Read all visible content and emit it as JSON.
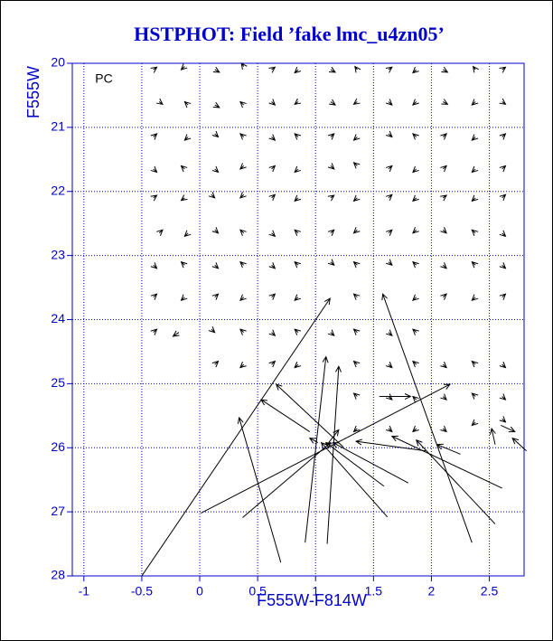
{
  "chart_data": {
    "type": "vector",
    "title": "HSTPHOT: Field ’fake lmc_u4zn05’",
    "x_label": "F555W-F814W",
    "y_label": "F555W",
    "annotation": "PC",
    "xlim": [
      -1.1,
      2.8
    ],
    "ylim": [
      28,
      20
    ],
    "y_inverted": true,
    "xticks": [
      -1,
      -0.5,
      0,
      0.5,
      1,
      1.5,
      2,
      2.5
    ],
    "yticks": [
      20,
      21,
      22,
      23,
      24,
      25,
      26,
      27,
      28
    ],
    "grid": true,
    "color": "#000000",
    "vectors": [
      [
        -0.4,
        20.1,
        -0.37,
        20.06
      ],
      [
        -0.13,
        20.05,
        -0.16,
        20.1
      ],
      [
        0.13,
        20.1,
        0.17,
        20.14
      ],
      [
        0.38,
        20.05,
        0.36,
        20.0
      ],
      [
        0.62,
        20.1,
        0.65,
        20.06
      ],
      [
        0.85,
        20.1,
        0.82,
        20.15
      ],
      [
        1.13,
        20.1,
        1.17,
        20.14
      ],
      [
        1.36,
        20.1,
        1.34,
        20.05
      ],
      [
        1.63,
        20.1,
        1.66,
        20.06
      ],
      [
        1.87,
        20.1,
        1.84,
        20.15
      ],
      [
        2.1,
        20.1,
        2.14,
        20.14
      ],
      [
        2.38,
        20.1,
        2.36,
        20.05
      ],
      [
        2.61,
        20.1,
        2.64,
        20.06
      ],
      [
        -0.35,
        20.6,
        -0.32,
        20.64
      ],
      [
        -0.1,
        20.65,
        -0.13,
        20.6
      ],
      [
        0.13,
        20.65,
        0.17,
        20.69
      ],
      [
        0.38,
        20.65,
        0.35,
        20.6
      ],
      [
        0.62,
        20.6,
        0.65,
        20.65
      ],
      [
        0.85,
        20.6,
        0.82,
        20.64
      ],
      [
        1.13,
        20.6,
        1.17,
        20.65
      ],
      [
        1.36,
        20.6,
        1.33,
        20.64
      ],
      [
        1.63,
        20.6,
        1.66,
        20.65
      ],
      [
        1.87,
        20.6,
        1.84,
        20.65
      ],
      [
        2.1,
        20.6,
        2.14,
        20.64
      ],
      [
        2.38,
        20.6,
        2.35,
        20.65
      ],
      [
        2.61,
        20.6,
        2.64,
        20.64
      ],
      [
        -0.4,
        21.15,
        -0.37,
        21.1
      ],
      [
        -0.1,
        21.15,
        -0.13,
        21.2
      ],
      [
        0.13,
        21.1,
        0.16,
        21.15
      ],
      [
        0.38,
        21.15,
        0.35,
        21.1
      ],
      [
        0.62,
        21.15,
        0.65,
        21.2
      ],
      [
        0.85,
        21.15,
        0.82,
        21.1
      ],
      [
        1.13,
        21.15,
        1.16,
        21.1
      ],
      [
        1.36,
        21.15,
        1.33,
        21.2
      ],
      [
        1.63,
        21.1,
        1.66,
        21.15
      ],
      [
        1.87,
        21.15,
        1.84,
        21.1
      ],
      [
        2.1,
        21.15,
        2.13,
        21.1
      ],
      [
        2.38,
        21.15,
        2.35,
        21.2
      ],
      [
        2.61,
        21.15,
        2.64,
        21.1
      ],
      [
        -0.4,
        21.65,
        -0.37,
        21.7
      ],
      [
        -0.13,
        21.65,
        -0.16,
        21.6
      ],
      [
        0.13,
        21.65,
        0.16,
        21.7
      ],
      [
        0.38,
        21.6,
        0.35,
        21.65
      ],
      [
        0.62,
        21.65,
        0.65,
        21.6
      ],
      [
        0.85,
        21.65,
        0.82,
        21.7
      ],
      [
        1.13,
        21.6,
        1.16,
        21.65
      ],
      [
        1.36,
        21.6,
        1.33,
        21.55
      ],
      [
        1.63,
        21.65,
        1.66,
        21.6
      ],
      [
        1.87,
        21.65,
        1.84,
        21.7
      ],
      [
        2.1,
        21.65,
        2.13,
        21.6
      ],
      [
        2.38,
        21.65,
        2.35,
        21.7
      ],
      [
        2.61,
        21.65,
        2.64,
        21.6
      ],
      [
        -0.4,
        22.1,
        -0.37,
        22.06
      ],
      [
        -0.13,
        22.1,
        -0.16,
        22.14
      ],
      [
        0.1,
        22.05,
        0.13,
        22.1
      ],
      [
        0.38,
        22.05,
        0.35,
        22.1
      ],
      [
        0.62,
        22.1,
        0.65,
        22.05
      ],
      [
        0.85,
        22.1,
        0.82,
        22.15
      ],
      [
        1.13,
        22.1,
        1.16,
        22.06
      ],
      [
        1.36,
        22.1,
        1.33,
        22.15
      ],
      [
        1.63,
        22.1,
        1.66,
        22.05
      ],
      [
        1.87,
        22.1,
        1.84,
        22.15
      ],
      [
        2.1,
        22.1,
        2.13,
        22.06
      ],
      [
        2.38,
        22.1,
        2.35,
        22.15
      ],
      [
        2.61,
        22.1,
        2.64,
        22.05
      ],
      [
        -0.35,
        22.65,
        -0.32,
        22.6
      ],
      [
        -0.1,
        22.65,
        -0.13,
        22.7
      ],
      [
        0.13,
        22.6,
        0.16,
        22.65
      ],
      [
        0.38,
        22.65,
        0.35,
        22.6
      ],
      [
        0.62,
        22.65,
        0.65,
        22.7
      ],
      [
        0.85,
        22.65,
        0.82,
        22.6
      ],
      [
        1.13,
        22.65,
        1.16,
        22.6
      ],
      [
        1.36,
        22.6,
        1.33,
        22.65
      ],
      [
        1.63,
        22.65,
        1.66,
        22.6
      ],
      [
        1.87,
        22.6,
        1.84,
        22.65
      ],
      [
        2.1,
        22.6,
        2.13,
        22.65
      ],
      [
        2.38,
        22.65,
        2.35,
        22.6
      ],
      [
        2.61,
        22.65,
        2.64,
        22.7
      ],
      [
        -0.4,
        23.15,
        -0.37,
        23.2
      ],
      [
        -0.13,
        23.15,
        -0.16,
        23.1
      ],
      [
        0.13,
        23.15,
        0.16,
        23.2
      ],
      [
        0.38,
        23.15,
        0.35,
        23.1
      ],
      [
        0.62,
        23.15,
        0.65,
        23.2
      ],
      [
        0.85,
        23.15,
        0.82,
        23.1
      ],
      [
        1.13,
        23.1,
        1.16,
        23.15
      ],
      [
        1.36,
        23.15,
        1.33,
        23.1
      ],
      [
        1.63,
        23.1,
        1.66,
        23.15
      ],
      [
        1.87,
        23.15,
        1.84,
        23.1
      ],
      [
        2.1,
        23.15,
        2.13,
        23.2
      ],
      [
        2.38,
        23.15,
        2.35,
        23.1
      ],
      [
        2.61,
        23.15,
        2.64,
        23.2
      ],
      [
        -0.4,
        23.65,
        -0.37,
        23.6
      ],
      [
        -0.13,
        23.65,
        -0.16,
        23.7
      ],
      [
        0.13,
        23.65,
        0.16,
        23.6
      ],
      [
        0.38,
        23.65,
        0.35,
        23.7
      ],
      [
        0.62,
        23.65,
        0.65,
        23.6
      ],
      [
        0.85,
        23.65,
        0.82,
        23.7
      ],
      [
        1.36,
        23.65,
        1.33,
        23.6
      ],
      [
        1.87,
        23.65,
        1.84,
        23.7
      ],
      [
        2.1,
        23.65,
        2.13,
        23.6
      ],
      [
        2.38,
        23.65,
        2.35,
        23.7
      ],
      [
        2.61,
        23.65,
        2.64,
        23.6
      ],
      [
        -0.4,
        24.2,
        -0.37,
        24.15
      ],
      [
        -0.18,
        24.2,
        -0.23,
        24.26
      ],
      [
        0.1,
        24.15,
        0.13,
        24.2
      ],
      [
        0.38,
        24.2,
        0.35,
        24.15
      ],
      [
        0.62,
        24.2,
        0.65,
        24.25
      ],
      [
        0.85,
        24.2,
        0.82,
        24.15
      ],
      [
        1.13,
        24.2,
        1.16,
        24.25
      ],
      [
        1.36,
        24.2,
        1.33,
        24.15
      ],
      [
        1.63,
        24.2,
        1.66,
        24.25
      ],
      [
        1.87,
        24.2,
        1.84,
        24.15
      ],
      [
        0.13,
        24.7,
        0.16,
        24.65
      ],
      [
        0.38,
        24.7,
        0.35,
        24.75
      ],
      [
        0.62,
        24.7,
        0.65,
        24.65
      ],
      [
        0.85,
        24.7,
        0.82,
        24.75
      ],
      [
        1.36,
        24.7,
        1.33,
        24.65
      ],
      [
        1.63,
        24.7,
        1.66,
        24.75
      ],
      [
        1.87,
        24.7,
        1.84,
        24.65
      ],
      [
        2.1,
        24.7,
        2.13,
        24.75
      ],
      [
        2.38,
        24.7,
        2.35,
        24.65
      ],
      [
        2.61,
        24.7,
        2.64,
        24.75
      ],
      [
        1.36,
        25.2,
        1.33,
        25.15
      ],
      [
        1.63,
        25.2,
        1.66,
        25.25
      ],
      [
        1.87,
        25.25,
        1.84,
        25.2
      ],
      [
        2.1,
        25.2,
        2.13,
        25.25
      ],
      [
        2.38,
        25.2,
        2.35,
        25.15
      ],
      [
        2.61,
        25.2,
        2.64,
        25.25
      ],
      [
        1.36,
        25.7,
        1.33,
        25.75
      ],
      [
        1.63,
        25.7,
        1.66,
        25.75
      ],
      [
        1.87,
        25.7,
        1.84,
        25.75
      ],
      [
        2.1,
        25.7,
        2.13,
        25.75
      ],
      [
        2.38,
        25.6,
        2.35,
        25.65
      ],
      [
        2.61,
        25.55,
        2.64,
        25.6
      ],
      [
        -0.5,
        28.0,
        1.125,
        23.67
      ],
      [
        0.7,
        27.79,
        0.34,
        25.53
      ],
      [
        0.01,
        27.02,
        2.16,
        25.01
      ],
      [
        0.37,
        27.09,
        1.13,
        25.92
      ],
      [
        0.91,
        27.48,
        1.09,
        24.58
      ],
      [
        1.1,
        27.5,
        1.2,
        24.73
      ],
      [
        2.35,
        27.48,
        1.58,
        23.6
      ],
      [
        1.59,
        26.6,
        1.09,
        25.92
      ],
      [
        1.62,
        27.08,
        1.05,
        25.92
      ],
      [
        1.8,
        26.55,
        1.15,
        25.92
      ],
      [
        2.61,
        26.63,
        1.66,
        25.82
      ],
      [
        2.55,
        27.19,
        1.87,
        25.88
      ],
      [
        1.24,
        25.99,
        0.66,
        25.01
      ],
      [
        0.95,
        25.75,
        0.53,
        25.25
      ],
      [
        1.55,
        25.2,
        1.82,
        25.2
      ],
      [
        1.95,
        26.05,
        1.35,
        25.9
      ],
      [
        2.25,
        26.1,
        2.05,
        25.95
      ],
      [
        2.82,
        26.05,
        2.7,
        25.85
      ],
      [
        2.55,
        25.95,
        2.52,
        25.7
      ],
      [
        2.6,
        25.65,
        2.72,
        25.75
      ],
      [
        1.1,
        25.95,
        1.2,
        25.72
      ],
      [
        1.02,
        25.92,
        0.95,
        25.85
      ]
    ]
  }
}
